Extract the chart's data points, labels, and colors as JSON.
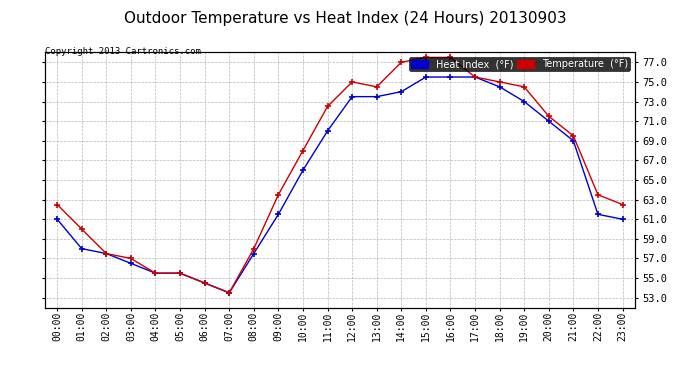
{
  "title": "Outdoor Temperature vs Heat Index (24 Hours) 20130903",
  "copyright": "Copyright 2013 Cartronics.com",
  "x_labels": [
    "00:00",
    "01:00",
    "02:00",
    "03:00",
    "04:00",
    "05:00",
    "06:00",
    "07:00",
    "08:00",
    "09:00",
    "10:00",
    "11:00",
    "12:00",
    "13:00",
    "14:00",
    "15:00",
    "16:00",
    "17:00",
    "18:00",
    "19:00",
    "20:00",
    "21:00",
    "22:00",
    "23:00"
  ],
  "heat_index": [
    61.0,
    58.0,
    57.5,
    56.5,
    55.5,
    55.5,
    54.5,
    53.5,
    57.5,
    61.5,
    66.0,
    70.0,
    73.5,
    73.5,
    74.0,
    75.5,
    75.5,
    75.5,
    74.5,
    73.0,
    71.0,
    69.0,
    61.5,
    61.0
  ],
  "temperature": [
    62.5,
    60.0,
    57.5,
    57.0,
    55.5,
    55.5,
    54.5,
    53.5,
    58.0,
    63.5,
    68.0,
    72.5,
    75.0,
    74.5,
    77.0,
    77.5,
    77.5,
    75.5,
    75.0,
    74.5,
    71.5,
    69.5,
    63.5,
    62.5
  ],
  "ylim": [
    52.0,
    78.0
  ],
  "yticks": [
    53.0,
    55.0,
    57.0,
    59.0,
    61.0,
    63.0,
    65.0,
    67.0,
    69.0,
    71.0,
    73.0,
    75.0,
    77.0
  ],
  "heat_index_color": "#0000cc",
  "temperature_color": "#cc0000",
  "background_color": "#ffffff",
  "plot_bg_color": "#ffffff",
  "grid_color": "#888888",
  "title_fontsize": 11,
  "legend_heat_bg": "#0000cc",
  "legend_temp_bg": "#cc0000"
}
